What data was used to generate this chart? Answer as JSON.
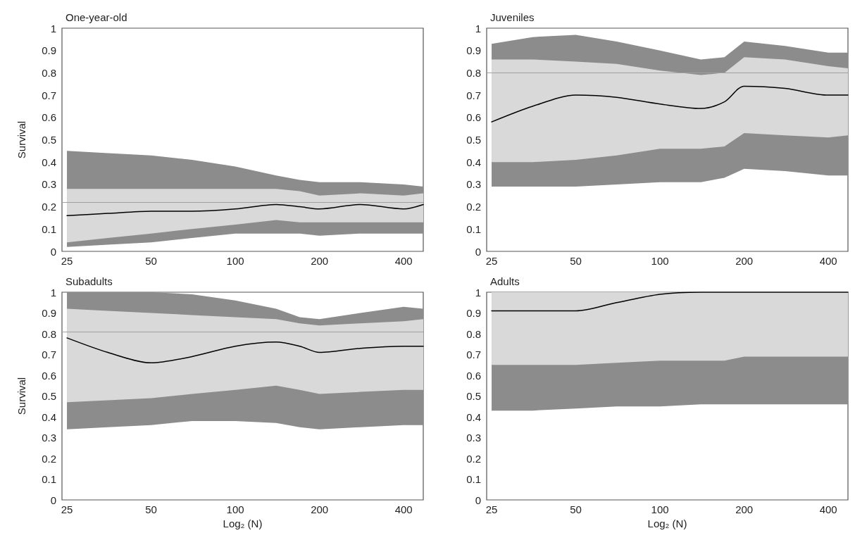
{
  "chart_data": [
    {
      "type": "line",
      "title": "One-year-old",
      "ylabel": "Survival",
      "xlim": [
        24,
        470
      ],
      "xticks": [
        25,
        50,
        100,
        200,
        400
      ],
      "ylim": [
        0,
        1
      ],
      "yticks": [
        0,
        0.1,
        0.2,
        0.3,
        0.4,
        0.5,
        0.6,
        0.7,
        0.8,
        0.9,
        1
      ],
      "grid": false,
      "marker": "none",
      "log": "x",
      "x": [
        25,
        35,
        50,
        70,
        100,
        140,
        170,
        200,
        280,
        400,
        470
      ],
      "ref_lines": [
        {
          "axis": "y",
          "value": 0.22,
          "color": "#a0a0a0"
        }
      ],
      "series": [
        {
          "color": "#8c8c8c",
          "values": [
            null,
            null,
            null,
            null,
            null,
            null,
            null,
            null,
            null,
            null,
            null
          ],
          "lower": [
            0.02,
            0.03,
            0.04,
            0.06,
            0.08,
            0.08,
            0.08,
            0.07,
            0.08,
            0.08,
            0.08
          ],
          "upper": [
            0.45,
            0.44,
            0.43,
            0.41,
            0.38,
            0.34,
            0.32,
            0.31,
            0.31,
            0.3,
            0.29
          ]
        },
        {
          "color": "#d9d9d9",
          "values": [
            null,
            null,
            null,
            null,
            null,
            null,
            null,
            null,
            null,
            null,
            null
          ],
          "lower": [
            0.04,
            0.06,
            0.08,
            0.1,
            0.12,
            0.14,
            0.13,
            0.13,
            0.13,
            0.13,
            0.13
          ],
          "upper": [
            0.28,
            0.28,
            0.28,
            0.28,
            0.28,
            0.28,
            0.27,
            0.25,
            0.26,
            0.25,
            0.26
          ]
        },
        {
          "color": "#000000",
          "values": [
            0.16,
            0.17,
            0.18,
            0.18,
            0.19,
            0.21,
            0.2,
            0.19,
            0.21,
            0.19,
            0.21
          ]
        }
      ]
    },
    {
      "type": "line",
      "title": "Juveniles",
      "xlim": [
        24,
        470
      ],
      "xticks": [
        25,
        50,
        100,
        200,
        400
      ],
      "ylim": [
        0,
        1
      ],
      "yticks": [
        0,
        0.1,
        0.2,
        0.3,
        0.4,
        0.5,
        0.6,
        0.7,
        0.8,
        0.9,
        1
      ],
      "grid": false,
      "marker": "none",
      "log": "x",
      "x": [
        25,
        35,
        50,
        70,
        100,
        140,
        170,
        200,
        280,
        400,
        470
      ],
      "ref_lines": [
        {
          "axis": "y",
          "value": 0.8,
          "color": "#a0a0a0"
        }
      ],
      "series": [
        {
          "color": "#8c8c8c",
          "values": [
            null,
            null,
            null,
            null,
            null,
            null,
            null,
            null,
            null,
            null,
            null
          ],
          "lower": [
            0.29,
            0.29,
            0.29,
            0.3,
            0.31,
            0.31,
            0.33,
            0.37,
            0.36,
            0.34,
            0.34
          ],
          "upper": [
            0.93,
            0.96,
            0.97,
            0.94,
            0.9,
            0.86,
            0.87,
            0.94,
            0.92,
            0.89,
            0.89
          ]
        },
        {
          "color": "#d9d9d9",
          "values": [
            null,
            null,
            null,
            null,
            null,
            null,
            null,
            null,
            null,
            null,
            null
          ],
          "lower": [
            0.4,
            0.4,
            0.41,
            0.43,
            0.46,
            0.46,
            0.47,
            0.53,
            0.52,
            0.51,
            0.52
          ],
          "upper": [
            0.86,
            0.86,
            0.85,
            0.84,
            0.81,
            0.79,
            0.8,
            0.87,
            0.86,
            0.83,
            0.82
          ]
        },
        {
          "color": "#000000",
          "values": [
            0.58,
            0.65,
            0.7,
            0.69,
            0.66,
            0.64,
            0.67,
            0.74,
            0.73,
            0.7,
            0.7
          ]
        }
      ]
    },
    {
      "type": "line",
      "title": "Subadults",
      "xlabel": "Log₂ (N)",
      "ylabel": "Survival",
      "xlim": [
        24,
        470
      ],
      "xticks": [
        25,
        50,
        100,
        200,
        400
      ],
      "ylim": [
        0,
        1
      ],
      "yticks": [
        0,
        0.1,
        0.2,
        0.3,
        0.4,
        0.5,
        0.6,
        0.7,
        0.8,
        0.9,
        1
      ],
      "grid": false,
      "marker": "none",
      "log": "x",
      "x": [
        25,
        35,
        50,
        70,
        100,
        140,
        170,
        200,
        280,
        400,
        470
      ],
      "ref_lines": [
        {
          "axis": "y",
          "value": 0.81,
          "color": "#a0a0a0"
        }
      ],
      "series": [
        {
          "color": "#8c8c8c",
          "values": [
            null,
            null,
            null,
            null,
            null,
            null,
            null,
            null,
            null,
            null,
            null
          ],
          "lower": [
            0.34,
            0.35,
            0.36,
            0.38,
            0.38,
            0.37,
            0.35,
            0.34,
            0.35,
            0.36,
            0.36
          ],
          "upper": [
            1,
            1,
            1,
            0.99,
            0.96,
            0.92,
            0.88,
            0.87,
            0.9,
            0.93,
            0.92
          ]
        },
        {
          "color": "#d9d9d9",
          "values": [
            null,
            null,
            null,
            null,
            null,
            null,
            null,
            null,
            null,
            null,
            null
          ],
          "lower": [
            0.47,
            0.48,
            0.49,
            0.51,
            0.53,
            0.55,
            0.53,
            0.51,
            0.52,
            0.53,
            0.53
          ],
          "upper": [
            0.92,
            0.91,
            0.9,
            0.89,
            0.88,
            0.87,
            0.85,
            0.84,
            0.85,
            0.86,
            0.87
          ]
        },
        {
          "color": "#000000",
          "values": [
            0.78,
            0.71,
            0.66,
            0.69,
            0.74,
            0.76,
            0.74,
            0.71,
            0.73,
            0.74,
            0.74
          ]
        }
      ]
    },
    {
      "type": "line",
      "title": "Adults",
      "xlabel": "Log₂ (N)",
      "xlim": [
        24,
        470
      ],
      "xticks": [
        25,
        50,
        100,
        200,
        400
      ],
      "ylim": [
        0,
        1
      ],
      "yticks": [
        0,
        0.1,
        0.2,
        0.3,
        0.4,
        0.5,
        0.6,
        0.7,
        0.8,
        0.9,
        1
      ],
      "grid": false,
      "marker": "none",
      "log": "x",
      "x": [
        25,
        35,
        50,
        70,
        100,
        140,
        170,
        200,
        280,
        400,
        470
      ],
      "series": [
        {
          "color": "#8c8c8c",
          "values": [
            null,
            null,
            null,
            null,
            null,
            null,
            null,
            null,
            null,
            null,
            null
          ],
          "lower": [
            0.43,
            0.43,
            0.44,
            0.45,
            0.45,
            0.46,
            0.46,
            0.46,
            0.46,
            0.46,
            0.46
          ],
          "upper": [
            1,
            1,
            1,
            1,
            1,
            1,
            1,
            1,
            1,
            1,
            1
          ]
        },
        {
          "color": "#d9d9d9",
          "values": [
            null,
            null,
            null,
            null,
            null,
            null,
            null,
            null,
            null,
            null,
            null
          ],
          "lower": [
            0.65,
            0.65,
            0.65,
            0.66,
            0.67,
            0.67,
            0.67,
            0.69,
            0.69,
            0.69,
            0.69
          ],
          "upper": [
            1,
            1,
            1,
            1,
            1,
            1,
            1,
            1,
            1,
            1,
            1
          ]
        },
        {
          "color": "#000000",
          "values": [
            0.91,
            0.91,
            0.91,
            0.95,
            0.99,
            1,
            1,
            1,
            1,
            1,
            1
          ]
        }
      ]
    }
  ]
}
